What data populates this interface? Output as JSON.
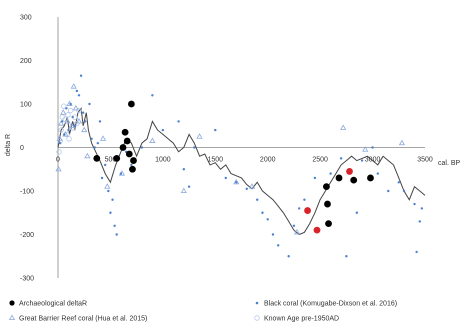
{
  "chart_data": {
    "type": "scatter",
    "xlabel": "cal. BP",
    "ylabel": "delta R",
    "xlim": [
      0,
      3500
    ],
    "ylim": [
      -300,
      300
    ],
    "x_ticks": [
      0,
      500,
      1000,
      1500,
      2000,
      2500,
      3000,
      3500
    ],
    "y_ticks": [
      -300,
      -200,
      -100,
      0,
      100,
      200,
      300
    ],
    "grid": false,
    "legend_position": "bottom",
    "colors": {
      "archaeological": "#000000",
      "black_coral": "#4a7fd1",
      "gbr_coral": "#8aa8dc",
      "known_age": "#b5c8e8",
      "curve": "#444444",
      "highlight": "#d8232a"
    },
    "series": [
      {
        "name": "Archaeological deltaR",
        "marker": "filled-circle-large",
        "points": [
          [
            370,
            -25
          ],
          [
            560,
            -25
          ],
          [
            620,
            0
          ],
          [
            640,
            35
          ],
          [
            660,
            15
          ],
          [
            680,
            -15
          ],
          [
            700,
            100
          ],
          [
            710,
            -50
          ],
          [
            720,
            -30
          ],
          [
            2380,
            -145
          ],
          [
            2470,
            -190
          ],
          [
            2560,
            -90
          ],
          [
            2570,
            -130
          ],
          [
            2580,
            -175
          ],
          [
            2680,
            -70
          ],
          [
            2780,
            -55
          ],
          [
            2820,
            -75
          ],
          [
            2980,
            -70
          ]
        ]
      },
      {
        "name": "Black coral (Komugabe-Dixson et al. 2016)",
        "marker": "small-dot",
        "points": [
          [
            20,
            10
          ],
          [
            40,
            60
          ],
          [
            60,
            30
          ],
          [
            80,
            90
          ],
          [
            100,
            40
          ],
          [
            120,
            100
          ],
          [
            140,
            70
          ],
          [
            160,
            50
          ],
          [
            180,
            130
          ],
          [
            200,
            120
          ],
          [
            220,
            165
          ],
          [
            240,
            80
          ],
          [
            260,
            60
          ],
          [
            300,
            100
          ],
          [
            320,
            20
          ],
          [
            350,
            0
          ],
          [
            380,
            10
          ],
          [
            400,
            60
          ],
          [
            420,
            -70
          ],
          [
            450,
            -40
          ],
          [
            480,
            -100
          ],
          [
            500,
            -150
          ],
          [
            520,
            -120
          ],
          [
            540,
            -180
          ],
          [
            560,
            -200
          ],
          [
            600,
            -60
          ],
          [
            650,
            -10
          ],
          [
            700,
            -40
          ],
          [
            800,
            0
          ],
          [
            900,
            120
          ],
          [
            1000,
            40
          ],
          [
            1150,
            60
          ],
          [
            1200,
            -50
          ],
          [
            1250,
            -90
          ],
          [
            1300,
            0
          ],
          [
            1500,
            40
          ],
          [
            1600,
            -70
          ],
          [
            1700,
            -80
          ],
          [
            1800,
            -95
          ],
          [
            1900,
            -120
          ],
          [
            1950,
            -150
          ],
          [
            2000,
            -165
          ],
          [
            2050,
            -200
          ],
          [
            2100,
            -225
          ],
          [
            2200,
            -250
          ],
          [
            2250,
            -180
          ],
          [
            2300,
            -140
          ],
          [
            2350,
            -120
          ],
          [
            2450,
            -70
          ],
          [
            2600,
            -60
          ],
          [
            2700,
            -25
          ],
          [
            2750,
            -250
          ],
          [
            2850,
            -150
          ],
          [
            2900,
            -30
          ],
          [
            3000,
            0
          ],
          [
            3050,
            -60
          ],
          [
            3150,
            -100
          ],
          [
            3250,
            -80
          ],
          [
            3300,
            -100
          ],
          [
            3400,
            -130
          ],
          [
            3420,
            -240
          ],
          [
            3450,
            -170
          ],
          [
            3470,
            -140
          ]
        ]
      },
      {
        "name": "Great Barrier Reef coral (Hua et al. 2015)",
        "marker": "open-triangle",
        "points": [
          [
            5,
            -50
          ],
          [
            15,
            20
          ],
          [
            30,
            55
          ],
          [
            50,
            80
          ],
          [
            70,
            30
          ],
          [
            90,
            60
          ],
          [
            110,
            100
          ],
          [
            130,
            50
          ],
          [
            150,
            140
          ],
          [
            170,
            90
          ],
          [
            200,
            60
          ],
          [
            250,
            40
          ],
          [
            280,
            -20
          ],
          [
            430,
            20
          ],
          [
            470,
            -90
          ],
          [
            610,
            -60
          ],
          [
            900,
            15
          ],
          [
            1200,
            -100
          ],
          [
            1350,
            25
          ],
          [
            1700,
            -80
          ],
          [
            1850,
            -90
          ],
          [
            2280,
            -195
          ],
          [
            2720,
            45
          ],
          [
            2930,
            -5
          ],
          [
            3280,
            10
          ]
        ]
      },
      {
        "name": "Known Age pre-1950AD",
        "marker": "open-circle",
        "points": [
          [
            10,
            -10
          ],
          [
            20,
            15
          ],
          [
            30,
            40
          ],
          [
            40,
            70
          ],
          [
            55,
            95
          ],
          [
            70,
            65
          ],
          [
            85,
            30
          ],
          [
            95,
            75
          ],
          [
            105,
            20
          ],
          [
            120,
            85
          ],
          [
            140,
            45
          ],
          [
            160,
            70
          ],
          [
            180,
            55
          ],
          [
            200,
            85
          ]
        ]
      }
    ],
    "curve": [
      [
        0,
        0
      ],
      [
        30,
        40
      ],
      [
        60,
        50
      ],
      [
        90,
        70
      ],
      [
        110,
        30
      ],
      [
        140,
        60
      ],
      [
        160,
        40
      ],
      [
        190,
        80
      ],
      [
        220,
        90
      ],
      [
        240,
        50
      ],
      [
        270,
        80
      ],
      [
        290,
        40
      ],
      [
        320,
        10
      ],
      [
        360,
        -10
      ],
      [
        400,
        -30
      ],
      [
        450,
        -60
      ],
      [
        500,
        -80
      ],
      [
        550,
        -40
      ],
      [
        600,
        -10
      ],
      [
        650,
        20
      ],
      [
        700,
        10
      ],
      [
        750,
        -20
      ],
      [
        800,
        10
      ],
      [
        850,
        20
      ],
      [
        900,
        60
      ],
      [
        950,
        40
      ],
      [
        1000,
        30
      ],
      [
        1050,
        20
      ],
      [
        1100,
        10
      ],
      [
        1150,
        -10
      ],
      [
        1200,
        0
      ],
      [
        1250,
        30
      ],
      [
        1300,
        10
      ],
      [
        1350,
        -20
      ],
      [
        1400,
        -15
      ],
      [
        1450,
        -40
      ],
      [
        1500,
        -35
      ],
      [
        1550,
        -50
      ],
      [
        1600,
        -40
      ],
      [
        1650,
        -60
      ],
      [
        1700,
        -65
      ],
      [
        1750,
        -70
      ],
      [
        1800,
        -85
      ],
      [
        1850,
        -95
      ],
      [
        1900,
        -80
      ],
      [
        1950,
        -100
      ],
      [
        2000,
        -110
      ],
      [
        2050,
        -120
      ],
      [
        2100,
        -135
      ],
      [
        2150,
        -150
      ],
      [
        2200,
        -170
      ],
      [
        2250,
        -190
      ],
      [
        2300,
        -200
      ],
      [
        2350,
        -195
      ],
      [
        2400,
        -175
      ],
      [
        2450,
        -150
      ],
      [
        2500,
        -120
      ],
      [
        2550,
        -100
      ],
      [
        2600,
        -80
      ],
      [
        2650,
        -60
      ],
      [
        2700,
        -40
      ],
      [
        2750,
        -30
      ],
      [
        2800,
        -20
      ],
      [
        2850,
        -30
      ],
      [
        2900,
        -25
      ],
      [
        2950,
        -20
      ],
      [
        3000,
        -30
      ],
      [
        3050,
        -40
      ],
      [
        3100,
        -20
      ],
      [
        3150,
        -30
      ],
      [
        3200,
        -40
      ],
      [
        3250,
        -70
      ],
      [
        3300,
        -100
      ],
      [
        3350,
        -120
      ],
      [
        3400,
        -90
      ],
      [
        3450,
        -100
      ],
      [
        3500,
        -110
      ]
    ],
    "highlight_points": [
      [
        2380,
        -145
      ],
      [
        2470,
        -190
      ],
      [
        2780,
        -55
      ]
    ]
  }
}
